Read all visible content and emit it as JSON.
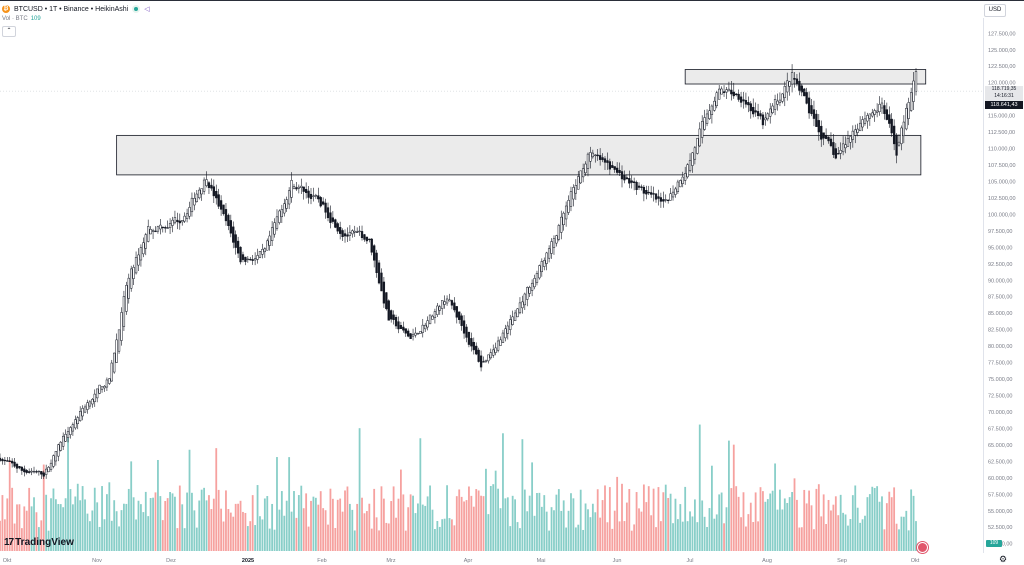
{
  "header": {
    "symbol_badge": "₿",
    "title": "BTCUSD • 1T • Binance • HeikinAshi",
    "vol_label": "Vol · BTC",
    "vol_value": "109",
    "collapse_glyph": "⌃",
    "currency": "USD"
  },
  "price_labels": {
    "current_price": "118.719,35",
    "countdown": "14:16:31",
    "last_price": "118.641,43",
    "volume_badge": "109"
  },
  "brand": {
    "logo_mark": "17",
    "logo_text": "TradingView"
  },
  "icons": {
    "settings": "⚙",
    "symbol": "btc-icon",
    "legend_eye": "eye-icon",
    "legend_share": "share-icon",
    "flag": "us-flag-icon"
  },
  "colors": {
    "up_volume": "#26a69a",
    "down_volume": "#ef5350",
    "candle": "#131722",
    "zone_fill": "#ebebeb",
    "zone_border": "#131722"
  },
  "chart_data": {
    "type": "candlestick-heikinashi",
    "title": "BTCUSD • 1T • Binance • HeikinAshi",
    "ylabel": "USD",
    "ylim": [
      49500,
      128000
    ],
    "y_ticks": [
      "127.500,00",
      "125.000,00",
      "122.500,00",
      "120.000,00",
      "117.500,00",
      "115.000,00",
      "112.500,00",
      "110.000,00",
      "107.500,00",
      "105.000,00",
      "102.500,00",
      "100.000,00",
      "97.500,00",
      "95.000,00",
      "92.500,00",
      "90.000,00",
      "87.500,00",
      "85.000,00",
      "82.500,00",
      "80.000,00",
      "77.500,00",
      "75.000,00",
      "72.500,00",
      "70.000,00",
      "67.500,00",
      "65.000,00",
      "62.500,00",
      "60.000,00",
      "57.500,00",
      "55.000,00",
      "52.500,00",
      "50.000,00"
    ],
    "x_ticks": [
      "Okt",
      "Nov",
      "Dez",
      "2025",
      "Feb",
      "Mrz",
      "Apr",
      "Mai",
      "Jun",
      "Jul",
      "Aug",
      "Sep",
      "Okt"
    ],
    "x_domain": [
      "2024-09-22",
      "2025-10-04"
    ],
    "price_path": [
      {
        "date": "2024-09-22",
        "price": 63000
      },
      {
        "date": "2024-10-01",
        "price": 61000
      },
      {
        "date": "2024-10-10",
        "price": 60500
      },
      {
        "date": "2024-10-20",
        "price": 67500
      },
      {
        "date": "2024-10-29",
        "price": 72000
      },
      {
        "date": "2024-11-06",
        "price": 75000
      },
      {
        "date": "2024-11-13",
        "price": 89000
      },
      {
        "date": "2024-11-22",
        "price": 98000
      },
      {
        "date": "2024-12-05",
        "price": 99000
      },
      {
        "date": "2024-12-16",
        "price": 106000
      },
      {
        "date": "2024-12-30",
        "price": 93000
      },
      {
        "date": "2025-01-09",
        "price": 94000
      },
      {
        "date": "2025-01-20",
        "price": 105000
      },
      {
        "date": "2025-01-31",
        "price": 102000
      },
      {
        "date": "2025-02-10",
        "price": 97500
      },
      {
        "date": "2025-02-21",
        "price": 96000
      },
      {
        "date": "2025-03-01",
        "price": 84000
      },
      {
        "date": "2025-03-10",
        "price": 81000
      },
      {
        "date": "2025-03-25",
        "price": 87500
      },
      {
        "date": "2025-04-08",
        "price": 77000
      },
      {
        "date": "2025-04-22",
        "price": 85000
      },
      {
        "date": "2025-05-08",
        "price": 96000
      },
      {
        "date": "2025-05-22",
        "price": 109000
      },
      {
        "date": "2025-06-06",
        "price": 105500
      },
      {
        "date": "2025-06-22",
        "price": 101000
      },
      {
        "date": "2025-07-03",
        "price": 108500
      },
      {
        "date": "2025-07-14",
        "price": 119000
      },
      {
        "date": "2025-07-25",
        "price": 118000
      },
      {
        "date": "2025-08-02",
        "price": 113500
      },
      {
        "date": "2025-08-14",
        "price": 121000
      },
      {
        "date": "2025-08-24",
        "price": 113000
      },
      {
        "date": "2025-09-01",
        "price": 108500
      },
      {
        "date": "2025-09-12",
        "price": 115000
      },
      {
        "date": "2025-09-20",
        "price": 116500
      },
      {
        "date": "2025-09-26",
        "price": 109500
      },
      {
        "date": "2025-10-04",
        "price": 122000
      }
    ],
    "volume_max_btc": 100,
    "zones": [
      {
        "price_top": 112000,
        "price_bottom": 106000,
        "date_start": "2024-11-09",
        "date_end": "2025-10-06"
      },
      {
        "price_top": 122000,
        "price_bottom": 119800,
        "date_start": "2025-07-01",
        "date_end": "2025-10-08"
      }
    ],
    "current_price": 118719.35,
    "last_price": 118641.43,
    "grid": false,
    "legend": "top-left"
  }
}
